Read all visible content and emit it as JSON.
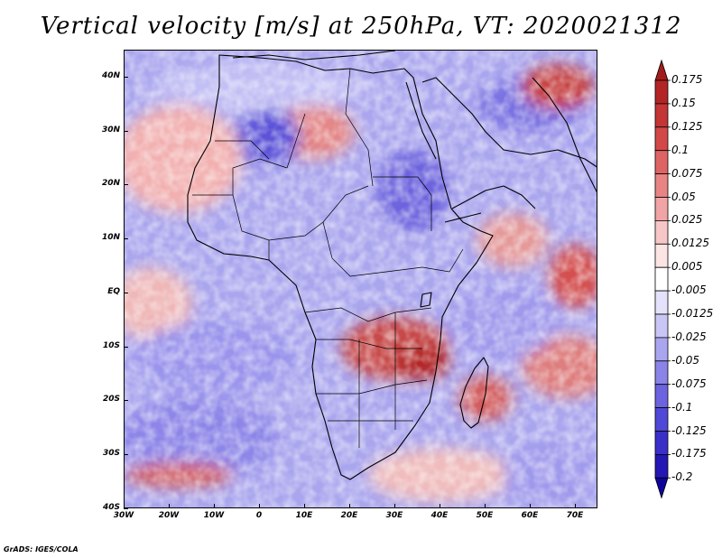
{
  "title": "Vertical velocity [m/s] at 250hPa, VT: 2020021312",
  "credit": "GrADS: IGES/COLA",
  "map": {
    "lat_labels": [
      "40N",
      "30N",
      "20N",
      "10N",
      "EQ",
      "10S",
      "20S",
      "30S",
      "40S"
    ],
    "lon_labels": [
      "30W",
      "20W",
      "10W",
      "0",
      "10E",
      "20E",
      "30E",
      "40E",
      "50E",
      "60E",
      "70E"
    ],
    "lat_range": [
      -40,
      45
    ],
    "lon_range": [
      -30,
      75
    ]
  },
  "colorbar": {
    "labels": [
      "0.175",
      "0.15",
      "0.125",
      "0.1",
      "0.075",
      "0.05",
      "0.025",
      "0.0125",
      "0.005",
      "-0.005",
      "-0.0125",
      "-0.025",
      "-0.05",
      "-0.075",
      "-0.1",
      "-0.125",
      "-0.175",
      "-0.2"
    ],
    "colors": [
      "#a31c1c",
      "#b32525",
      "#c43535",
      "#d24848",
      "#de6464",
      "#e88484",
      "#f0a4a4",
      "#f7c6c6",
      "#fce4e4",
      "#ffffff",
      "#e4e2fb",
      "#c9c5f5",
      "#aaa5ef",
      "#8b84e8",
      "#6c63df",
      "#5048d6",
      "#3a30c8",
      "#2417b4",
      "#10039c"
    ]
  }
}
